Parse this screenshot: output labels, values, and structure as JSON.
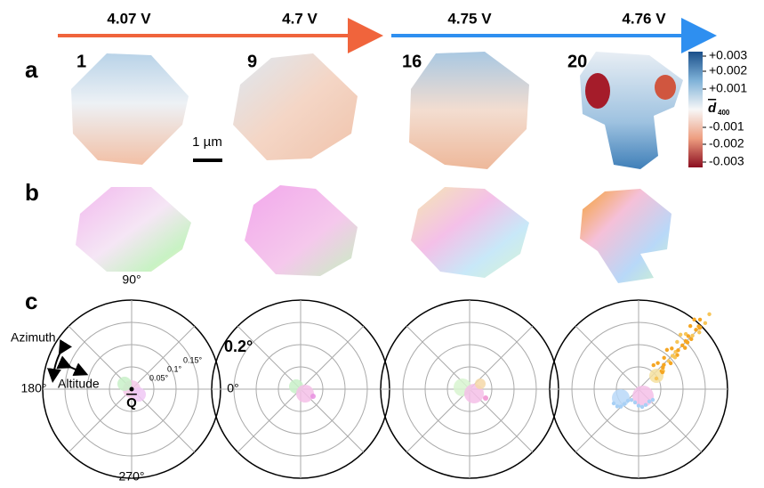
{
  "voltages": [
    "4.07 V",
    "4.7 V",
    "4.75 V",
    "4.76 V"
  ],
  "frames": [
    "1",
    "9",
    "16",
    "20"
  ],
  "panels": [
    "a",
    "b",
    "c"
  ],
  "scale_bar": "1 µm",
  "colorbar": {
    "symbol": "d",
    "subscript": "400",
    "ticks": [
      "+0.003",
      "+0.002",
      "+0.001",
      "-0.001",
      "-0.002",
      "-0.003"
    ]
  },
  "polar": {
    "angles": [
      "90°",
      "180°",
      "0°",
      "270°"
    ],
    "radii": [
      "0.05°",
      "0.1°",
      "0.15°",
      "0.2°"
    ],
    "annotations": [
      "Azimuth",
      "Altitude"
    ],
    "vector": "Q"
  }
}
